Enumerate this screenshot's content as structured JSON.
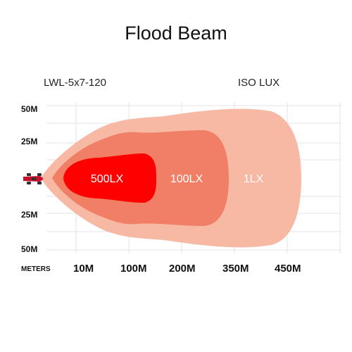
{
  "title": "Flood Beam",
  "model": "LWL-5x7-120",
  "legend_label": "ISO LUX",
  "y_labels": [
    "50M",
    "25M",
    "25M",
    "50M"
  ],
  "x_axis_name": "METERS",
  "x_labels": [
    "10M",
    "100M",
    "200M",
    "350M",
    "450M"
  ],
  "zones": [
    {
      "label": "1LX",
      "color": "#f7b9a3"
    },
    {
      "label": "100LX",
      "color": "#f07f66"
    },
    {
      "label": "500LX",
      "color": "#fe0000"
    }
  ],
  "icon": "car-icon"
}
